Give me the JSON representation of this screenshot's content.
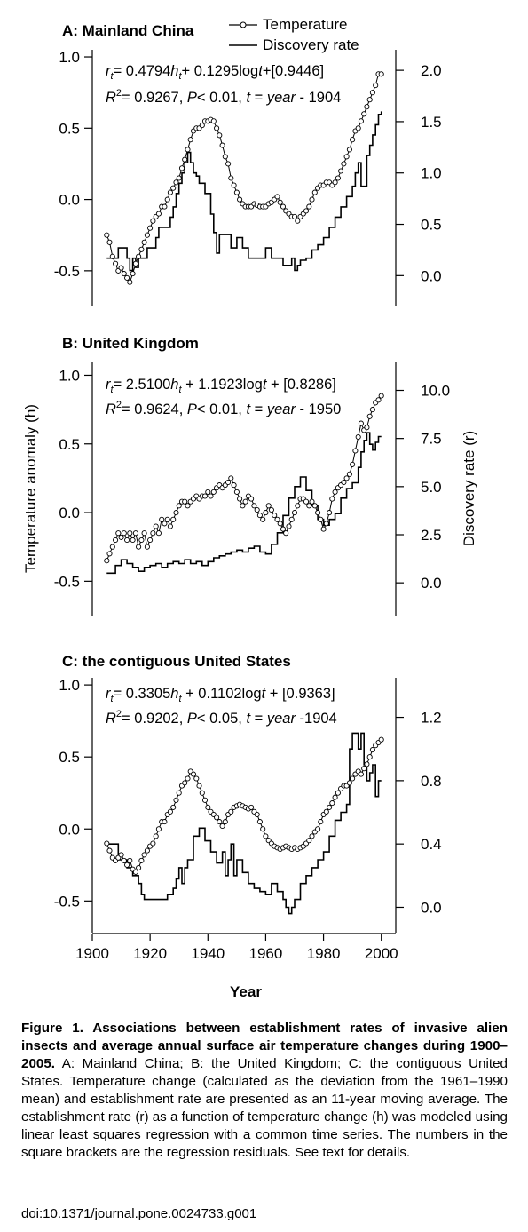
{
  "axes": {
    "left_label": "Temperature anomaly (h)",
    "right_label": "Discovery rate (r)",
    "x_label": "Year",
    "x_ticks": [
      "1900",
      "1920",
      "1940",
      "1960",
      "1980",
      "2000"
    ]
  },
  "legend": {
    "temperature": "Temperature",
    "discovery": "Discovery rate"
  },
  "caption": {
    "title": "Figure 1. Associations between establishment rates of invasive alien insects and average annual surface air temperature changes during 1900–2005.",
    "body": "A: Mainland China; B: the United Kingdom; C: the contiguous United States. Temperature change (calculated as the deviation from the 1961–1990 mean) and establishment rate are presented as an 11-year moving average. The establishment rate (r) as a function of temperature change (h) was modeled using linear least squares regression with a common time series. The numbers in the square brackets are the regression residuals. See text for details.",
    "doi": "doi:10.1371/journal.pone.0024733.g001"
  },
  "chart_data": [
    {
      "type": "line",
      "panel_title": "A:  Mainland China",
      "equation_line1": "r_t= 0.4794h_t+ 0.1295logt+[0.9446]",
      "equation_line2": "R2= 0.9267, P< 0.01, t = year - 1904",
      "xlim": [
        1900,
        2005
      ],
      "left_ylim": [
        -0.75,
        1.05
      ],
      "left_ticks": [
        "1.0",
        "0.5",
        "0.0",
        "-0.5"
      ],
      "right_ylim": [
        -0.3,
        2.2
      ],
      "right_ticks": [
        "2.0",
        "1.5",
        "1.0",
        "0.5",
        "0.0"
      ],
      "temperature": {
        "x": [
          1905,
          1906,
          1907,
          1908,
          1909,
          1910,
          1911,
          1912,
          1913,
          1914,
          1915,
          1916,
          1917,
          1918,
          1919,
          1920,
          1921,
          1922,
          1923,
          1924,
          1925,
          1926,
          1927,
          1928,
          1929,
          1930,
          1931,
          1932,
          1933,
          1934,
          1935,
          1936,
          1937,
          1938,
          1939,
          1940,
          1941,
          1942,
          1943,
          1944,
          1945,
          1946,
          1947,
          1948,
          1949,
          1950,
          1951,
          1952,
          1953,
          1954,
          1955,
          1956,
          1957,
          1958,
          1959,
          1960,
          1961,
          1962,
          1963,
          1964,
          1965,
          1966,
          1967,
          1968,
          1969,
          1970,
          1971,
          1972,
          1973,
          1974,
          1975,
          1976,
          1977,
          1978,
          1979,
          1980,
          1981,
          1982,
          1983,
          1984,
          1985,
          1986,
          1987,
          1988,
          1989,
          1990,
          1991,
          1992,
          1993,
          1994,
          1995,
          1996,
          1997,
          1998,
          1999,
          2000
        ],
        "y": [
          -0.25,
          -0.3,
          -0.4,
          -0.45,
          -0.5,
          -0.48,
          -0.52,
          -0.55,
          -0.58,
          -0.52,
          -0.45,
          -0.4,
          -0.35,
          -0.3,
          -0.25,
          -0.2,
          -0.15,
          -0.12,
          -0.1,
          -0.05,
          -0.05,
          0.0,
          0.05,
          0.08,
          0.12,
          0.15,
          0.22,
          0.28,
          0.35,
          0.42,
          0.48,
          0.5,
          0.5,
          0.52,
          0.55,
          0.55,
          0.56,
          0.55,
          0.5,
          0.45,
          0.38,
          0.3,
          0.25,
          0.15,
          0.1,
          0.05,
          0.0,
          -0.03,
          -0.05,
          -0.05,
          -0.05,
          -0.03,
          -0.04,
          -0.05,
          -0.05,
          -0.05,
          -0.03,
          -0.02,
          0.0,
          0.02,
          -0.02,
          -0.05,
          -0.08,
          -0.1,
          -0.12,
          -0.12,
          -0.15,
          -0.12,
          -0.1,
          -0.08,
          -0.05,
          0.0,
          0.05,
          0.08,
          0.1,
          0.1,
          0.12,
          0.12,
          0.1,
          0.12,
          0.15,
          0.2,
          0.25,
          0.3,
          0.35,
          0.42,
          0.48,
          0.5,
          0.55,
          0.6,
          0.65,
          0.7,
          0.75,
          0.8,
          0.88,
          0.88
        ]
      },
      "discovery_rate": {
        "x": [
          1905,
          1908,
          1909,
          1911,
          1912,
          1913,
          1914,
          1915,
          1916,
          1918,
          1919,
          1921,
          1922,
          1923,
          1926,
          1927,
          1928,
          1929,
          1930,
          1931,
          1932,
          1933,
          1934,
          1935,
          1936,
          1937,
          1939,
          1941,
          1942,
          1943,
          1944,
          1948,
          1950,
          1952,
          1954,
          1956,
          1960,
          1962,
          1965,
          1966,
          1969,
          1970,
          1971,
          1972,
          1974,
          1976,
          1978,
          1980,
          1982,
          1984,
          1986,
          1988,
          1990,
          1991,
          1992,
          1993,
          1995,
          1996,
          1997,
          1998,
          1999,
          2000
        ],
        "y": [
          0.17,
          0.17,
          0.27,
          0.27,
          0.17,
          0.05,
          0.17,
          0.08,
          0.17,
          0.17,
          0.27,
          0.27,
          0.37,
          0.47,
          0.47,
          0.57,
          0.67,
          0.8,
          0.9,
          1.0,
          1.1,
          1.2,
          1.1,
          1.0,
          0.97,
          0.9,
          0.8,
          0.6,
          0.42,
          0.22,
          0.4,
          0.27,
          0.37,
          0.27,
          0.17,
          0.17,
          0.27,
          0.17,
          0.17,
          0.1,
          0.17,
          0.05,
          0.1,
          0.15,
          0.17,
          0.25,
          0.3,
          0.37,
          0.47,
          0.57,
          0.67,
          0.77,
          0.87,
          1.0,
          1.1,
          0.87,
          1.17,
          1.27,
          1.37,
          1.47,
          1.57,
          1.6
        ]
      }
    },
    {
      "type": "line",
      "panel_title": "B:  United Kingdom",
      "equation_line1": "r_t= 2.5100h_t + 1.1923logt + [0.8286]",
      "equation_line2": "R2= 0.9624, P< 0.01, t = year - 1950",
      "xlim": [
        1900,
        2005
      ],
      "left_ylim": [
        -0.75,
        1.1
      ],
      "left_ticks": [
        "1.0",
        "0.5",
        "0.0",
        "-0.5"
      ],
      "right_ylim": [
        -1.7,
        11.5
      ],
      "right_ticks": [
        "10.0",
        "7.5",
        "5.0",
        "2.5",
        "0.0"
      ],
      "temperature": {
        "x": [
          1905,
          1906,
          1907,
          1908,
          1909,
          1910,
          1911,
          1912,
          1913,
          1914,
          1915,
          1916,
          1917,
          1918,
          1919,
          1920,
          1921,
          1922,
          1923,
          1924,
          1925,
          1926,
          1927,
          1928,
          1929,
          1930,
          1931,
          1932,
          1933,
          1934,
          1935,
          1936,
          1937,
          1938,
          1939,
          1940,
          1941,
          1942,
          1943,
          1944,
          1945,
          1946,
          1947,
          1948,
          1949,
          1950,
          1951,
          1952,
          1953,
          1954,
          1955,
          1956,
          1957,
          1958,
          1959,
          1960,
          1961,
          1962,
          1963,
          1964,
          1965,
          1966,
          1967,
          1968,
          1969,
          1970,
          1971,
          1972,
          1973,
          1974,
          1975,
          1976,
          1977,
          1978,
          1979,
          1980,
          1981,
          1982,
          1983,
          1984,
          1985,
          1986,
          1987,
          1988,
          1989,
          1990,
          1991,
          1992,
          1993,
          1994,
          1995,
          1996,
          1997,
          1998,
          1999,
          2000
        ],
        "y": [
          -0.35,
          -0.3,
          -0.25,
          -0.2,
          -0.15,
          -0.18,
          -0.15,
          -0.2,
          -0.15,
          -0.2,
          -0.15,
          -0.25,
          -0.2,
          -0.15,
          -0.25,
          -0.2,
          -0.15,
          -0.1,
          -0.15,
          -0.05,
          -0.08,
          -0.05,
          -0.1,
          -0.05,
          0.0,
          0.05,
          0.08,
          0.08,
          0.05,
          0.08,
          0.1,
          0.12,
          0.1,
          0.12,
          0.12,
          0.15,
          0.12,
          0.15,
          0.18,
          0.2,
          0.18,
          0.2,
          0.22,
          0.25,
          0.2,
          0.15,
          0.1,
          0.05,
          0.08,
          0.12,
          0.1,
          0.05,
          0.02,
          -0.02,
          -0.05,
          0.0,
          0.05,
          0.02,
          -0.02,
          -0.05,
          -0.08,
          -0.12,
          -0.15,
          -0.1,
          -0.05,
          0.0,
          0.05,
          0.1,
          0.1,
          0.08,
          0.05,
          0.08,
          0.05,
          0.0,
          -0.05,
          -0.12,
          -0.08,
          0.0,
          0.1,
          0.15,
          0.18,
          0.2,
          0.22,
          0.25,
          0.28,
          0.35,
          0.45,
          0.55,
          0.65,
          0.6,
          0.62,
          0.7,
          0.75,
          0.8,
          0.82,
          0.85
        ]
      },
      "discovery_rate": {
        "x": [
          1905,
          1908,
          1910,
          1912,
          1914,
          1916,
          1918,
          1920,
          1922,
          1924,
          1926,
          1928,
          1930,
          1932,
          1934,
          1936,
          1938,
          1940,
          1942,
          1944,
          1946,
          1948,
          1950,
          1952,
          1954,
          1956,
          1958,
          1960,
          1962,
          1964,
          1966,
          1968,
          1970,
          1972,
          1974,
          1976,
          1978,
          1980,
          1982,
          1984,
          1986,
          1988,
          1990,
          1992,
          1993,
          1994,
          1995,
          1996,
          1997,
          1998,
          1999,
          2000
        ],
        "y": [
          0.5,
          0.9,
          1.2,
          1.0,
          0.8,
          0.6,
          0.8,
          0.9,
          1.0,
          0.8,
          1.0,
          1.1,
          1.0,
          1.2,
          1.0,
          1.1,
          0.9,
          1.1,
          1.3,
          1.4,
          1.5,
          1.6,
          1.7,
          1.6,
          1.8,
          1.9,
          1.6,
          1.5,
          2.0,
          2.6,
          3.5,
          4.4,
          5.0,
          5.5,
          4.8,
          4.0,
          3.3,
          3.0,
          3.3,
          3.6,
          4.4,
          4.9,
          5.2,
          6.0,
          6.8,
          7.4,
          7.8,
          7.2,
          6.9,
          7.3,
          7.6,
          7.6
        ]
      }
    },
    {
      "type": "line",
      "panel_title": "C:  the contiguous United States",
      "equation_line1": "r_t= 0.3305h_t + 0.1102logt + [0.9363]",
      "equation_line2": "R2= 0.9202, P< 0.05, t = year -1904",
      "xlim": [
        1900,
        2005
      ],
      "left_ylim": [
        -0.72,
        1.05
      ],
      "left_ticks": [
        "1.0",
        "0.5",
        "0.0",
        "-0.5"
      ],
      "right_ylim": [
        -0.16,
        1.45
      ],
      "right_ticks": [
        "1.2",
        "0.8",
        "0.4",
        "0.0"
      ],
      "temperature": {
        "x": [
          1905,
          1906,
          1907,
          1908,
          1909,
          1910,
          1911,
          1912,
          1913,
          1914,
          1915,
          1916,
          1917,
          1918,
          1919,
          1920,
          1921,
          1922,
          1923,
          1924,
          1925,
          1926,
          1927,
          1928,
          1929,
          1930,
          1931,
          1932,
          1933,
          1934,
          1935,
          1936,
          1937,
          1938,
          1939,
          1940,
          1941,
          1942,
          1943,
          1944,
          1945,
          1946,
          1947,
          1948,
          1949,
          1950,
          1951,
          1952,
          1953,
          1954,
          1955,
          1956,
          1957,
          1958,
          1959,
          1960,
          1961,
          1962,
          1963,
          1964,
          1965,
          1966,
          1967,
          1968,
          1969,
          1970,
          1971,
          1972,
          1973,
          1974,
          1975,
          1976,
          1977,
          1978,
          1979,
          1980,
          1981,
          1982,
          1983,
          1984,
          1985,
          1986,
          1987,
          1988,
          1989,
          1990,
          1991,
          1992,
          1993,
          1994,
          1995,
          1996,
          1997,
          1998,
          1999,
          2000
        ],
        "y": [
          -0.1,
          -0.15,
          -0.2,
          -0.22,
          -0.2,
          -0.18,
          -0.22,
          -0.25,
          -0.22,
          -0.28,
          -0.3,
          -0.27,
          -0.22,
          -0.18,
          -0.15,
          -0.12,
          -0.1,
          -0.05,
          0.0,
          0.05,
          0.05,
          0.1,
          0.12,
          0.15,
          0.2,
          0.25,
          0.3,
          0.32,
          0.35,
          0.4,
          0.38,
          0.35,
          0.3,
          0.25,
          0.2,
          0.15,
          0.12,
          0.1,
          0.08,
          0.05,
          0.02,
          0.05,
          0.1,
          0.12,
          0.15,
          0.16,
          0.17,
          0.16,
          0.15,
          0.14,
          0.15,
          0.12,
          0.1,
          0.05,
          0.0,
          -0.05,
          -0.08,
          -0.1,
          -0.12,
          -0.13,
          -0.14,
          -0.13,
          -0.12,
          -0.13,
          -0.14,
          -0.13,
          -0.14,
          -0.13,
          -0.12,
          -0.1,
          -0.08,
          -0.05,
          -0.02,
          0.0,
          0.05,
          0.1,
          0.12,
          0.15,
          0.18,
          0.22,
          0.25,
          0.28,
          0.3,
          0.3,
          0.32,
          0.35,
          0.38,
          0.4,
          0.38,
          0.42,
          0.45,
          0.5,
          0.55,
          0.58,
          0.6,
          0.62
        ]
      },
      "discovery_rate": {
        "x": [
          1905,
          1906,
          1909,
          1910,
          1912,
          1914,
          1916,
          1917,
          1918,
          1920,
          1922,
          1924,
          1926,
          1928,
          1929,
          1930,
          1931,
          1932,
          1933,
          1935,
          1937,
          1939,
          1941,
          1943,
          1945,
          1946,
          1947,
          1948,
          1949,
          1950,
          1952,
          1954,
          1956,
          1958,
          1960,
          1962,
          1964,
          1966,
          1967,
          1968,
          1969,
          1970,
          1972,
          1974,
          1976,
          1978,
          1980,
          1982,
          1984,
          1986,
          1988,
          1989,
          1990,
          1992,
          1993,
          1994,
          1995,
          1996,
          1997,
          1998,
          1999,
          2000
        ],
        "y": [
          0.4,
          0.4,
          0.3,
          0.3,
          0.25,
          0.2,
          0.15,
          0.08,
          0.05,
          0.05,
          0.05,
          0.05,
          0.08,
          0.12,
          0.18,
          0.25,
          0.15,
          0.25,
          0.3,
          0.45,
          0.5,
          0.42,
          0.35,
          0.28,
          0.35,
          0.2,
          0.3,
          0.4,
          0.2,
          0.3,
          0.22,
          0.15,
          0.12,
          0.1,
          0.08,
          0.15,
          0.1,
          0.05,
          0.0,
          -0.04,
          0.0,
          0.05,
          0.15,
          0.2,
          0.25,
          0.3,
          0.35,
          0.45,
          0.55,
          0.6,
          0.65,
          1.0,
          1.1,
          1.0,
          1.1,
          0.9,
          0.8,
          0.85,
          0.9,
          0.7,
          0.8,
          0.8
        ]
      }
    }
  ]
}
